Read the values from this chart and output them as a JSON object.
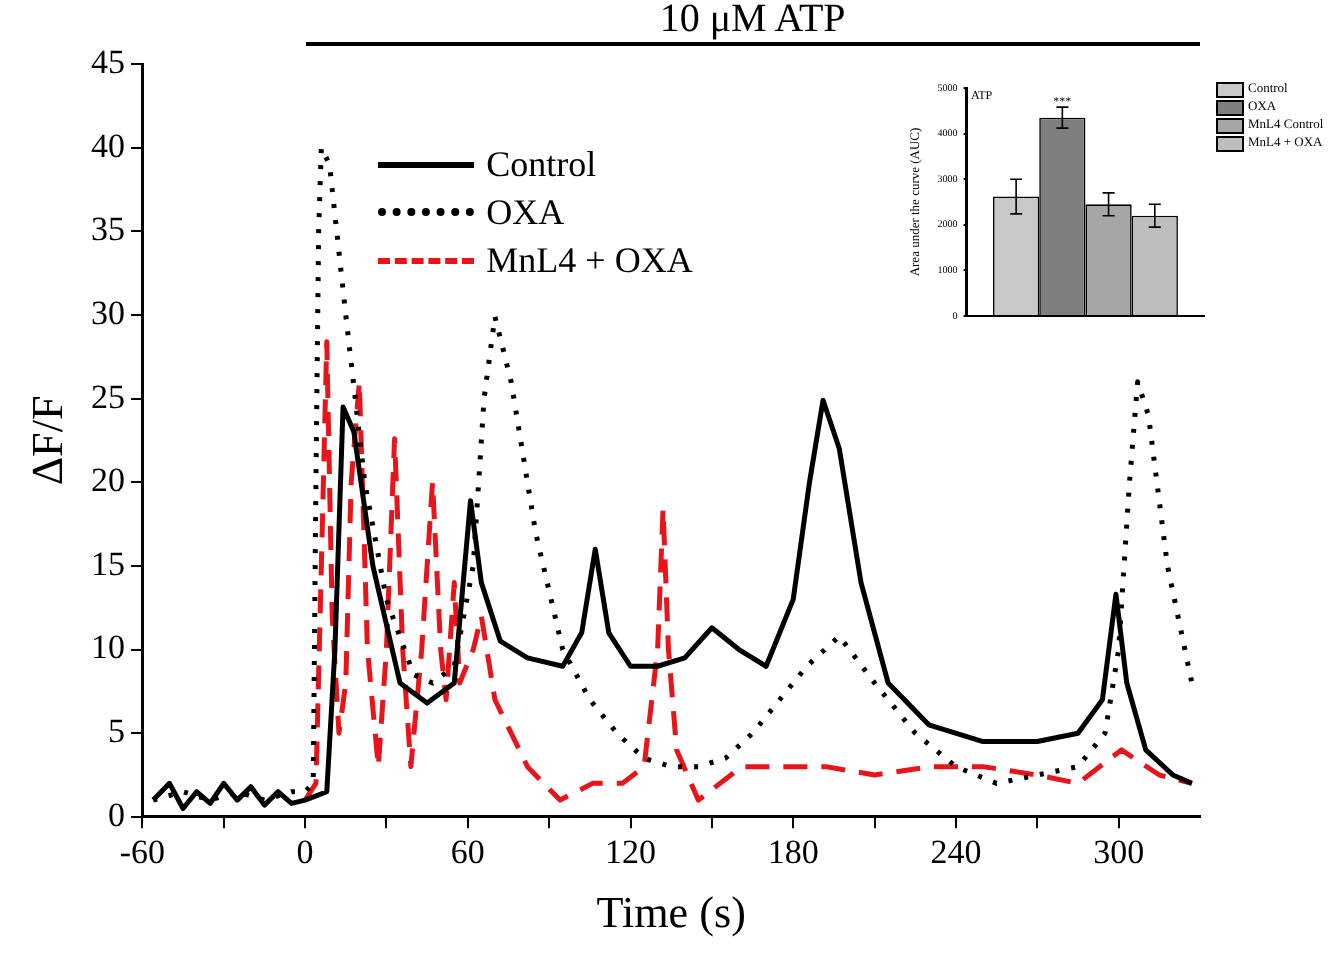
{
  "chart_data": [
    {
      "type": "line",
      "xlabel": "Time (s)",
      "ylabel": "ΔF/F",
      "xlim": [
        -60,
        330
      ],
      "ylim": [
        0,
        45
      ],
      "xticks": [
        -60,
        {
          "value": -30,
          "label": null
        },
        0,
        {
          "value": 30,
          "label": null
        },
        60,
        {
          "value": 90,
          "label": null
        },
        120,
        {
          "value": 150,
          "label": null
        },
        180,
        {
          "value": 210,
          "label": null
        },
        240,
        {
          "value": 270,
          "label": null
        },
        300
      ],
      "yticks": [
        0,
        5,
        10,
        15,
        20,
        25,
        30,
        35,
        40,
        45
      ],
      "grid": false,
      "legend": "top left",
      "marker": "none",
      "annotations": [
        "10 μM ATP"
      ],
      "series": [
        {
          "name": "Control",
          "color": "#000000",
          "line_style": "solid",
          "x": [
            -56,
            -50,
            -45,
            -40,
            -35,
            -30,
            -25,
            -20,
            -15,
            -10,
            -5,
            0,
            8,
            11,
            14,
            18,
            25,
            35,
            45,
            55,
            61,
            65,
            72,
            82,
            95,
            102,
            107,
            112,
            120,
            130,
            140,
            150,
            160,
            170,
            180,
            186,
            191,
            197,
            205,
            215,
            230,
            250,
            270,
            285,
            294,
            299,
            303,
            310,
            320,
            327
          ],
          "values": [
            1,
            2,
            0.5,
            1.5,
            0.8,
            2,
            1,
            1.8,
            0.7,
            1.5,
            0.8,
            1,
            1.5,
            10,
            24.5,
            23,
            15,
            8,
            6.8,
            8,
            18.9,
            14,
            10.5,
            9.5,
            9,
            11,
            16,
            11,
            9,
            9,
            9.5,
            11.3,
            10,
            9,
            13,
            20,
            24.9,
            22,
            14,
            8,
            5.5,
            4.5,
            4.5,
            5,
            7,
            13.3,
            8,
            4,
            2.5,
            2
          ]
        },
        {
          "name": "OXA",
          "color": "#000000",
          "line_style": "dotted",
          "x": [
            -56,
            -45,
            -35,
            -25,
            -15,
            -5,
            0,
            3,
            4,
            5,
            6,
            9,
            15,
            22,
            30,
            40,
            47,
            55,
            62,
            66,
            70,
            76,
            85,
            95,
            105,
            115,
            125,
            135,
            145,
            155,
            165,
            175,
            185,
            197,
            210,
            225,
            240,
            255,
            270,
            285,
            295,
            300,
            304,
            307,
            311,
            318,
            327
          ],
          "values": [
            1,
            1.5,
            1,
            1.5,
            1,
            1.5,
            1.5,
            2,
            20,
            35,
            40,
            39,
            30,
            20,
            13,
            8.5,
            8,
            9,
            15,
            25,
            29.9,
            26,
            17,
            10,
            7,
            5,
            3.5,
            3,
            3,
            3.5,
            5,
            7,
            9,
            10.8,
            8,
            5,
            3,
            2,
            2.5,
            3,
            5,
            10,
            20,
            26,
            24,
            15,
            8
          ]
        },
        {
          "name": "MnL4 + OXA",
          "color": "#e8141a",
          "line_style": "dashed",
          "x": [
            0,
            4,
            6,
            8,
            10,
            12.5,
            15,
            17,
            20,
            23,
            27,
            30,
            33,
            36,
            39,
            43,
            47,
            50,
            52,
            55,
            57,
            62,
            65,
            70,
            76,
            82,
            94,
            106,
            117,
            125,
            130,
            132,
            134,
            137,
            145,
            161,
            175,
            192,
            210,
            231,
            250,
            270,
            285,
            301,
            315,
            327
          ],
          "values": [
            1,
            2,
            15,
            28.4,
            12,
            5,
            8,
            20,
            26,
            10,
            3,
            10,
            22.6,
            10,
            3,
            10,
            20,
            10,
            7,
            14,
            8,
            10,
            12,
            7,
            5,
            3,
            1,
            2,
            2,
            3,
            10,
            18.4,
            10,
            4,
            1,
            3,
            3,
            3,
            2.5,
            3,
            3,
            2.5,
            2,
            4,
            2.5,
            2
          ]
        }
      ]
    },
    {
      "type": "bar",
      "ylabel": "Area under the curve (AUC)",
      "categories": [
        null
      ],
      "ylim": [
        0,
        5000
      ],
      "yticks": [
        0,
        1000,
        2000,
        3000,
        4000,
        5000
      ],
      "grid": false,
      "legend": "top right",
      "annotations": [
        "ATP",
        {
          "text": "***",
          "y": 4700
        }
      ],
      "series": [
        {
          "name": "Control",
          "color": "#c8c8c8",
          "values": [
            2620
          ],
          "errors": [
            380
          ]
        },
        {
          "name": "OXA",
          "color": "#7f7f7f",
          "values": [
            4350
          ],
          "errors": [
            230
          ]
        },
        {
          "name": "MnL4 Control",
          "color": "#a6a6a6",
          "values": [
            2450
          ],
          "errors": [
            250
          ]
        },
        {
          "name": "MnL4 + OXA",
          "color": "#bdbdbd",
          "values": [
            2200
          ],
          "errors": [
            250
          ]
        }
      ]
    }
  ]
}
